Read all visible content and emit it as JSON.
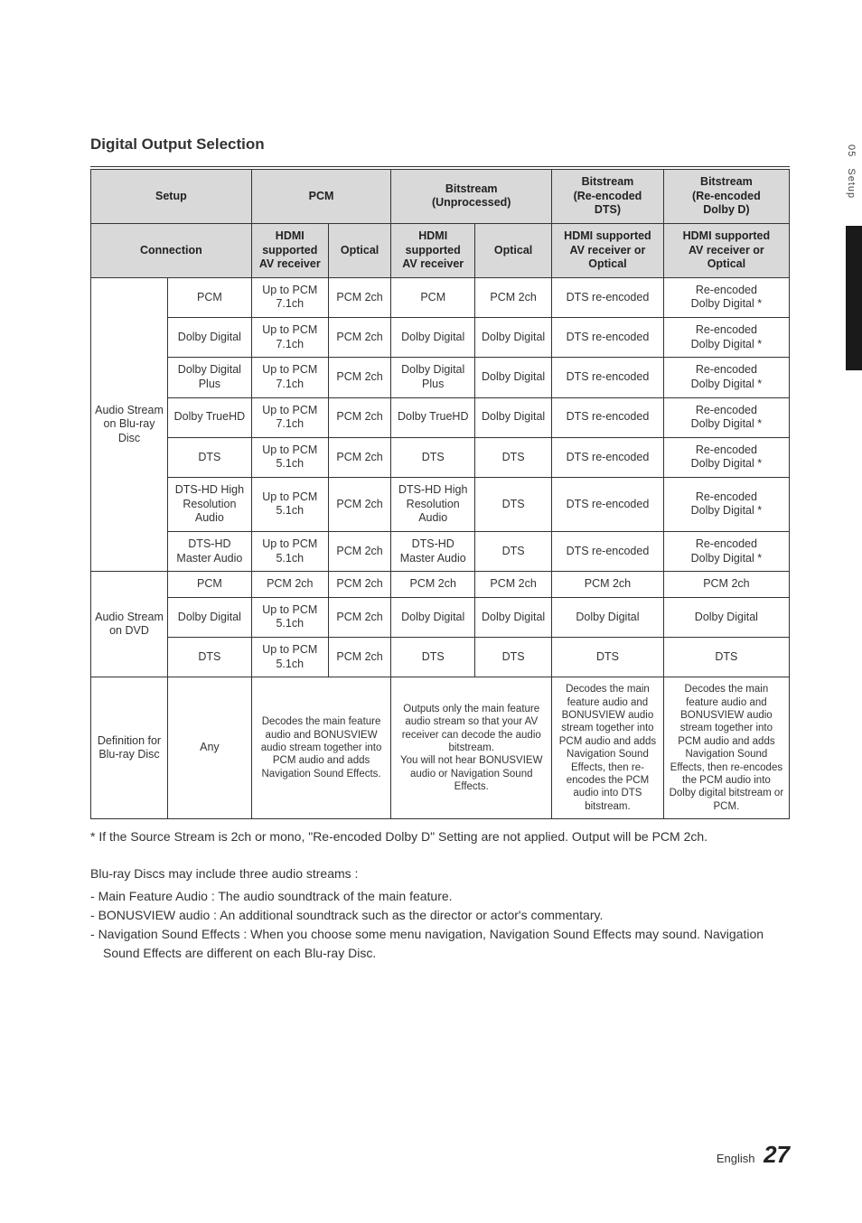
{
  "side": {
    "chapter": "05",
    "label": "Setup"
  },
  "title": "Digital Output Selection",
  "headers": {
    "row1": [
      "Setup",
      "PCM",
      "Bitstream\n(Unprocessed)",
      "Bitstream\n(Re-encoded\nDTS)",
      "Bitstream\n(Re-encoded\nDolby D)"
    ],
    "row2": [
      "Connection",
      "HDMI\nsupported\nAV receiver",
      "Optical",
      "HDMI\nsupported\nAV receiver",
      "Optical",
      "HDMI supported\nAV receiver or\nOptical",
      "HDMI supported\nAV receiver or\nOptical"
    ]
  },
  "groups": [
    {
      "label": "Audio Stream\non Blu-ray\nDisc",
      "rows": [
        {
          "c": [
            "PCM",
            "Up to PCM\n7.1ch",
            "PCM 2ch",
            "PCM",
            "PCM 2ch",
            "DTS re-encoded",
            "Re-encoded\nDolby Digital *"
          ]
        },
        {
          "c": [
            "Dolby Digital",
            "Up to PCM\n7.1ch",
            "PCM 2ch",
            "Dolby Digital",
            "Dolby Digital",
            "DTS re-encoded",
            "Re-encoded\nDolby Digital *"
          ]
        },
        {
          "c": [
            "Dolby Digital\nPlus",
            "Up to PCM\n7.1ch",
            "PCM 2ch",
            "Dolby Digital\nPlus",
            "Dolby Digital",
            "DTS re-encoded",
            "Re-encoded\nDolby Digital *"
          ]
        },
        {
          "c": [
            "Dolby TrueHD",
            "Up to PCM\n7.1ch",
            "PCM 2ch",
            "Dolby TrueHD",
            "Dolby Digital",
            "DTS re-encoded",
            "Re-encoded\nDolby Digital *"
          ]
        },
        {
          "c": [
            "DTS",
            "Up to PCM\n5.1ch",
            "PCM 2ch",
            "DTS",
            "DTS",
            "DTS re-encoded",
            "Re-encoded\nDolby Digital *"
          ]
        },
        {
          "c": [
            "DTS-HD High\nResolution\nAudio",
            "Up to PCM\n5.1ch",
            "PCM 2ch",
            "DTS-HD High\nResolution\nAudio",
            "DTS",
            "DTS re-encoded",
            "Re-encoded\nDolby Digital *"
          ]
        },
        {
          "c": [
            "DTS-HD\nMaster Audio",
            "Up to PCM\n5.1ch",
            "PCM 2ch",
            "DTS-HD\nMaster Audio",
            "DTS",
            "DTS re-encoded",
            "Re-encoded\nDolby Digital *"
          ]
        }
      ]
    },
    {
      "label": "Audio Stream\non DVD",
      "rows": [
        {
          "c": [
            "PCM",
            "PCM 2ch",
            "PCM 2ch",
            "PCM 2ch",
            "PCM 2ch",
            "PCM 2ch",
            "PCM 2ch"
          ]
        },
        {
          "c": [
            "Dolby Digital",
            "Up to PCM\n5.1ch",
            "PCM 2ch",
            "Dolby Digital",
            "Dolby Digital",
            "Dolby Digital",
            "Dolby Digital"
          ]
        },
        {
          "c": [
            "DTS",
            "Up to PCM\n5.1ch",
            "PCM 2ch",
            "DTS",
            "DTS",
            "DTS",
            "DTS"
          ]
        }
      ]
    }
  ],
  "def_row": {
    "label": "Definition for\nBlu-ray Disc",
    "cells": [
      "Any",
      "Decodes the main feature audio and BONUSVIEW audio stream together into PCM audio and adds Navigation Sound Effects.",
      "Outputs only the main feature audio stream so that your AV receiver can decode the audio bitstream.\nYou will not hear BONUSVIEW audio or Navigation Sound Effects.",
      "Decodes the main feature audio and BONUSVIEW audio stream together into PCM audio and adds Navigation Sound Effects, then re-encodes the PCM audio into DTS bitstream.",
      "Decodes the main feature audio and BONUSVIEW audio stream together into PCM audio and adds Navigation Sound Effects, then re-encodes the PCM audio into Dolby digital bitstream or PCM."
    ]
  },
  "footnote": "* If the Source Stream is 2ch or mono, \"Re-encoded Dolby D\" Setting are not applied. Output will be PCM 2ch.",
  "intro": "Blu-ray Discs may include three audio streams :",
  "bullets": [
    "Main Feature Audio : The audio soundtrack of the main feature.",
    "BONUSVIEW audio : An additional soundtrack such as the director or actor's commentary.",
    "Navigation Sound Effects : When you choose some menu navigation, Navigation Sound Effects may sound. Navigation Sound Effects are different on each Blu-ray Disc."
  ],
  "footer": {
    "lang": "English",
    "page": "27"
  }
}
